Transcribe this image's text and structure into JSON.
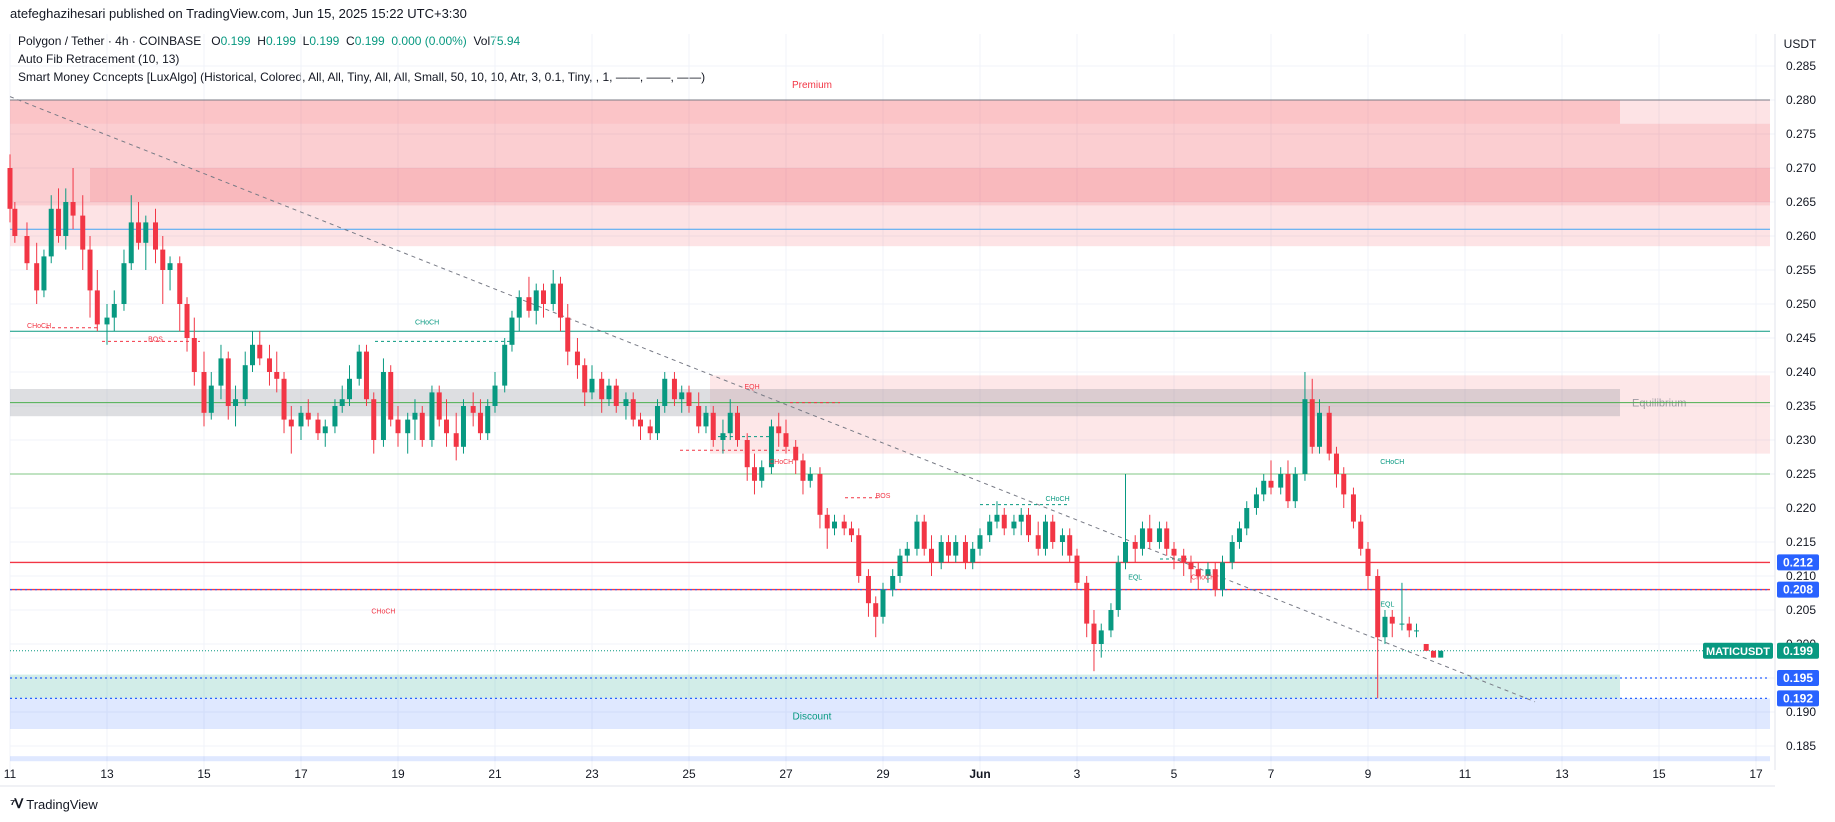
{
  "header": {
    "publisher_line": "atefeghazihesari published on TradingView.com, Jun 15, 2025 15:22 UTC+3:30"
  },
  "legend": {
    "symbol_line": "Polygon / Tether · 4h · COINBASE",
    "open_key": "O",
    "open": "0.199",
    "high_key": "H",
    "high": "0.199",
    "low_key": "L",
    "low": "0.199",
    "close_key": "C",
    "close": "0.199",
    "change": "0.000 (0.00%)",
    "vol_key": "Vol",
    "vol": "75.94",
    "indicator1": "Auto Fib Retracement (10, 13)",
    "indicator2": "Smart Money Concepts [LuxAlgo] (Historical, Colored, All, All, Tiny, All, All, Small, 50, 10, 10, Atr, 3, 0.1, Tiny, , 1, ——, ——, ——)"
  },
  "footer": {
    "brand": "TradingView"
  },
  "colors": {
    "up": "#089981",
    "down": "#f23645",
    "premium": "#f23645",
    "discount": "#089981",
    "blue": "#2962ff"
  },
  "chart_data": {
    "type": "candlestick",
    "y_axis_unit": "USDT",
    "ylim": [
      0.1815,
      0.2885
    ],
    "y_ticks": [
      "0.285",
      "0.280",
      "0.275",
      "0.270",
      "0.265",
      "0.260",
      "0.255",
      "0.250",
      "0.245",
      "0.240",
      "0.235",
      "0.230",
      "0.225",
      "0.220",
      "0.215",
      "0.210",
      "0.205",
      "0.200",
      "0.195",
      "0.190",
      "0.185"
    ],
    "x_tick_labels": [
      "11",
      "13",
      "15",
      "17",
      "19",
      "21",
      "23",
      "25",
      "27",
      "29",
      "Jun",
      "3",
      "5",
      "7",
      "9",
      "11",
      "13",
      "15",
      "17"
    ],
    "price_labels": [
      {
        "value": 0.212,
        "text": "0.212",
        "color": "#2962ff"
      },
      {
        "value": 0.208,
        "text": "0.208",
        "color": "#2962ff"
      },
      {
        "value": 0.195,
        "text": "0.195",
        "color": "#2962ff"
      },
      {
        "value": 0.192,
        "text": "0.192",
        "color": "#2962ff"
      }
    ],
    "last_price": {
      "symbol": "MATICUSDT",
      "value": 0.199,
      "text": "0.199"
    },
    "zones": [
      {
        "name": "Premium",
        "label": "Premium",
        "top": 0.28,
        "bottom": 0.2585,
        "color": "#f23645"
      },
      {
        "name": "Equilibrium",
        "label": "Equilibrium",
        "top": 0.2375,
        "bottom": 0.2335,
        "color": "#787b86"
      },
      {
        "name": "Discount",
        "label": "Discount",
        "top": 0.1955,
        "bottom": 0.1875,
        "color": "#089981"
      }
    ],
    "structure_labels": [
      {
        "text": "CHoCH",
        "x_day": 11.6,
        "y": 0.2465,
        "color": "#f23645"
      },
      {
        "text": "BOS",
        "x_day": 14.0,
        "y": 0.2445,
        "color": "#f23645"
      },
      {
        "text": "CHoCH",
        "x_day": 19.6,
        "y": 0.247,
        "color": "#089981"
      },
      {
        "text": "EQH",
        "x_day": 26.3,
        "y": 0.2375,
        "color": "#f23645"
      },
      {
        "text": "CHoCH",
        "x_day": 26.9,
        "y": 0.2265,
        "color": "#f23645"
      },
      {
        "text": "BOS",
        "x_day": 29.0,
        "y": 0.2215,
        "color": "#f23645"
      },
      {
        "text": "CHoCH",
        "x_day": 32.6,
        "y": 0.221,
        "color": "#089981"
      },
      {
        "text": "EQL",
        "x_day": 34.2,
        "y": 0.2095,
        "color": "#089981"
      },
      {
        "text": "CHoCH",
        "x_day": 35.6,
        "y": 0.2095,
        "color": "#f23645"
      },
      {
        "text": "CHoCH",
        "x_day": 39.5,
        "y": 0.2265,
        "color": "#089981"
      },
      {
        "text": "EQL",
        "x_day": 39.4,
        "y": 0.2055,
        "color": "#089981"
      },
      {
        "text": "CHoCH",
        "x_day": 18.7,
        "y": 0.2045,
        "color": "#f23645"
      }
    ],
    "candles": [
      [
        11.0,
        0.27,
        0.272,
        0.262,
        0.264
      ],
      [
        11.1,
        0.264,
        0.265,
        0.259,
        0.26
      ],
      [
        11.35,
        0.26,
        0.262,
        0.255,
        0.256
      ],
      [
        11.55,
        0.256,
        0.259,
        0.25,
        0.252
      ],
      [
        11.7,
        0.252,
        0.258,
        0.251,
        0.257
      ],
      [
        11.85,
        0.257,
        0.266,
        0.256,
        0.264
      ],
      [
        12.0,
        0.264,
        0.267,
        0.259,
        0.26
      ],
      [
        12.15,
        0.26,
        0.267,
        0.258,
        0.265
      ],
      [
        12.3,
        0.265,
        0.27,
        0.261,
        0.263
      ],
      [
        12.5,
        0.263,
        0.266,
        0.255,
        0.258
      ],
      [
        12.65,
        0.258,
        0.26,
        0.248,
        0.252
      ],
      [
        12.8,
        0.252,
        0.255,
        0.246,
        0.247
      ],
      [
        13.0,
        0.247,
        0.25,
        0.244,
        0.248
      ],
      [
        13.15,
        0.248,
        0.252,
        0.246,
        0.25
      ],
      [
        13.35,
        0.25,
        0.258,
        0.249,
        0.256
      ],
      [
        13.5,
        0.256,
        0.266,
        0.255,
        0.262
      ],
      [
        13.65,
        0.262,
        0.265,
        0.258,
        0.259
      ],
      [
        13.8,
        0.259,
        0.263,
        0.255,
        0.262
      ],
      [
        14.0,
        0.262,
        0.264,
        0.256,
        0.258
      ],
      [
        14.15,
        0.258,
        0.26,
        0.25,
        0.255
      ],
      [
        14.3,
        0.255,
        0.257,
        0.252,
        0.256
      ],
      [
        14.5,
        0.256,
        0.257,
        0.246,
        0.25
      ],
      [
        14.65,
        0.25,
        0.251,
        0.243,
        0.245
      ],
      [
        14.8,
        0.245,
        0.248,
        0.238,
        0.24
      ],
      [
        15.0,
        0.24,
        0.243,
        0.232,
        0.234
      ],
      [
        15.15,
        0.234,
        0.24,
        0.233,
        0.238
      ],
      [
        15.35,
        0.238,
        0.244,
        0.236,
        0.242
      ],
      [
        15.5,
        0.242,
        0.243,
        0.233,
        0.235
      ],
      [
        15.65,
        0.235,
        0.238,
        0.232,
        0.236
      ],
      [
        15.85,
        0.236,
        0.243,
        0.235,
        0.241
      ],
      [
        16.0,
        0.241,
        0.246,
        0.24,
        0.244
      ],
      [
        16.15,
        0.244,
        0.246,
        0.241,
        0.242
      ],
      [
        16.35,
        0.242,
        0.244,
        0.238,
        0.24
      ],
      [
        16.5,
        0.24,
        0.243,
        0.237,
        0.239
      ],
      [
        16.65,
        0.239,
        0.24,
        0.231,
        0.233
      ],
      [
        16.8,
        0.233,
        0.235,
        0.228,
        0.232
      ],
      [
        17.0,
        0.232,
        0.235,
        0.23,
        0.234
      ],
      [
        17.15,
        0.234,
        0.236,
        0.232,
        0.233
      ],
      [
        17.35,
        0.233,
        0.234,
        0.23,
        0.231
      ],
      [
        17.5,
        0.231,
        0.233,
        0.229,
        0.232
      ],
      [
        17.7,
        0.232,
        0.236,
        0.231,
        0.235
      ],
      [
        17.85,
        0.235,
        0.238,
        0.234,
        0.236
      ],
      [
        18.0,
        0.236,
        0.241,
        0.235,
        0.239
      ],
      [
        18.2,
        0.239,
        0.244,
        0.238,
        0.243
      ],
      [
        18.35,
        0.243,
        0.244,
        0.235,
        0.236
      ],
      [
        18.5,
        0.236,
        0.237,
        0.228,
        0.23
      ],
      [
        18.7,
        0.23,
        0.242,
        0.229,
        0.24
      ],
      [
        18.85,
        0.24,
        0.241,
        0.232,
        0.233
      ],
      [
        19.0,
        0.233,
        0.235,
        0.229,
        0.231
      ],
      [
        19.2,
        0.231,
        0.234,
        0.228,
        0.233
      ],
      [
        19.35,
        0.233,
        0.236,
        0.23,
        0.234
      ],
      [
        19.5,
        0.234,
        0.235,
        0.229,
        0.23
      ],
      [
        19.7,
        0.23,
        0.238,
        0.229,
        0.237
      ],
      [
        19.85,
        0.237,
        0.238,
        0.232,
        0.233
      ],
      [
        20.0,
        0.233,
        0.236,
        0.229,
        0.231
      ],
      [
        20.2,
        0.231,
        0.234,
        0.227,
        0.229
      ],
      [
        20.35,
        0.229,
        0.236,
        0.228,
        0.235
      ],
      [
        20.55,
        0.235,
        0.237,
        0.232,
        0.234
      ],
      [
        20.7,
        0.234,
        0.236,
        0.23,
        0.231
      ],
      [
        20.85,
        0.231,
        0.236,
        0.23,
        0.235
      ],
      [
        21.0,
        0.235,
        0.24,
        0.234,
        0.238
      ],
      [
        21.2,
        0.238,
        0.245,
        0.237,
        0.244
      ],
      [
        21.35,
        0.244,
        0.249,
        0.243,
        0.248
      ],
      [
        21.5,
        0.248,
        0.252,
        0.246,
        0.251
      ],
      [
        21.7,
        0.251,
        0.254,
        0.248,
        0.249
      ],
      [
        21.85,
        0.249,
        0.253,
        0.247,
        0.252
      ],
      [
        22.0,
        0.252,
        0.253,
        0.248,
        0.25
      ],
      [
        22.2,
        0.25,
        0.255,
        0.249,
        0.253
      ],
      [
        22.35,
        0.253,
        0.254,
        0.246,
        0.248
      ],
      [
        22.5,
        0.248,
        0.25,
        0.241,
        0.243
      ],
      [
        22.7,
        0.243,
        0.245,
        0.239,
        0.241
      ],
      [
        22.85,
        0.241,
        0.242,
        0.235,
        0.237
      ],
      [
        23.0,
        0.237,
        0.241,
        0.236,
        0.239
      ],
      [
        23.2,
        0.239,
        0.24,
        0.234,
        0.236
      ],
      [
        23.35,
        0.236,
        0.239,
        0.235,
        0.238
      ],
      [
        23.5,
        0.238,
        0.239,
        0.234,
        0.235
      ],
      [
        23.7,
        0.235,
        0.237,
        0.233,
        0.236
      ],
      [
        23.85,
        0.236,
        0.237,
        0.232,
        0.233
      ],
      [
        24.0,
        0.233,
        0.234,
        0.23,
        0.232
      ],
      [
        24.2,
        0.232,
        0.233,
        0.23,
        0.231
      ],
      [
        24.35,
        0.231,
        0.236,
        0.23,
        0.235
      ],
      [
        24.5,
        0.235,
        0.24,
        0.234,
        0.239
      ],
      [
        24.7,
        0.239,
        0.24,
        0.235,
        0.236
      ],
      [
        24.85,
        0.236,
        0.238,
        0.234,
        0.237
      ],
      [
        25.0,
        0.237,
        0.238,
        0.234,
        0.235
      ],
      [
        25.2,
        0.235,
        0.237,
        0.231,
        0.232
      ],
      [
        25.35,
        0.232,
        0.235,
        0.231,
        0.234
      ],
      [
        25.5,
        0.234,
        0.235,
        0.229,
        0.23
      ],
      [
        25.7,
        0.23,
        0.233,
        0.228,
        0.231
      ],
      [
        25.85,
        0.231,
        0.236,
        0.23,
        0.234
      ],
      [
        26.0,
        0.234,
        0.235,
        0.229,
        0.23
      ],
      [
        26.2,
        0.23,
        0.231,
        0.224,
        0.226
      ],
      [
        26.35,
        0.226,
        0.228,
        0.222,
        0.224
      ],
      [
        26.5,
        0.224,
        0.227,
        0.223,
        0.226
      ],
      [
        26.7,
        0.226,
        0.233,
        0.225,
        0.232
      ],
      [
        26.85,
        0.232,
        0.234,
        0.229,
        0.231
      ],
      [
        27.0,
        0.231,
        0.233,
        0.228,
        0.229
      ],
      [
        27.2,
        0.229,
        0.23,
        0.225,
        0.227
      ],
      [
        27.35,
        0.227,
        0.228,
        0.222,
        0.224
      ],
      [
        27.5,
        0.224,
        0.226,
        0.223,
        0.225
      ],
      [
        27.7,
        0.225,
        0.226,
        0.217,
        0.219
      ],
      [
        27.85,
        0.219,
        0.22,
        0.214,
        0.217
      ],
      [
        28.0,
        0.217,
        0.219,
        0.216,
        0.218
      ],
      [
        28.2,
        0.218,
        0.219,
        0.216,
        0.217
      ],
      [
        28.35,
        0.217,
        0.218,
        0.215,
        0.216
      ],
      [
        28.5,
        0.216,
        0.217,
        0.209,
        0.21
      ],
      [
        28.7,
        0.21,
        0.211,
        0.204,
        0.206
      ],
      [
        28.85,
        0.206,
        0.207,
        0.201,
        0.204
      ],
      [
        29.0,
        0.204,
        0.209,
        0.203,
        0.208
      ],
      [
        29.2,
        0.208,
        0.211,
        0.207,
        0.21
      ],
      [
        29.35,
        0.21,
        0.214,
        0.209,
        0.213
      ],
      [
        29.5,
        0.213,
        0.215,
        0.212,
        0.214
      ],
      [
        29.7,
        0.214,
        0.219,
        0.213,
        0.218
      ],
      [
        29.85,
        0.218,
        0.219,
        0.213,
        0.214
      ],
      [
        30.0,
        0.214,
        0.216,
        0.21,
        0.212
      ],
      [
        30.2,
        0.212,
        0.216,
        0.211,
        0.215
      ],
      [
        30.35,
        0.215,
        0.216,
        0.212,
        0.213
      ],
      [
        30.5,
        0.213,
        0.216,
        0.212,
        0.215
      ],
      [
        30.7,
        0.215,
        0.216,
        0.211,
        0.212
      ],
      [
        30.85,
        0.212,
        0.215,
        0.211,
        0.214
      ],
      [
        31.0,
        0.214,
        0.217,
        0.213,
        0.216
      ],
      [
        31.2,
        0.216,
        0.219,
        0.215,
        0.218
      ],
      [
        31.35,
        0.218,
        0.221,
        0.217,
        0.219
      ],
      [
        31.5,
        0.219,
        0.22,
        0.216,
        0.217
      ],
      [
        31.7,
        0.217,
        0.219,
        0.216,
        0.218
      ],
      [
        31.85,
        0.218,
        0.22,
        0.216,
        0.219
      ],
      [
        32.0,
        0.219,
        0.22,
        0.215,
        0.216
      ],
      [
        32.2,
        0.216,
        0.218,
        0.213,
        0.214
      ],
      [
        32.35,
        0.214,
        0.219,
        0.213,
        0.218
      ],
      [
        32.5,
        0.218,
        0.219,
        0.214,
        0.215
      ],
      [
        32.7,
        0.215,
        0.217,
        0.213,
        0.216
      ],
      [
        32.85,
        0.216,
        0.217,
        0.212,
        0.213
      ],
      [
        33.0,
        0.213,
        0.214,
        0.208,
        0.209
      ],
      [
        33.2,
        0.209,
        0.21,
        0.201,
        0.203
      ],
      [
        33.35,
        0.203,
        0.205,
        0.196,
        0.2
      ],
      [
        33.5,
        0.2,
        0.203,
        0.198,
        0.202
      ],
      [
        33.7,
        0.202,
        0.206,
        0.201,
        0.205
      ],
      [
        33.85,
        0.205,
        0.213,
        0.204,
        0.212
      ],
      [
        34.0,
        0.212,
        0.225,
        0.211,
        0.215
      ],
      [
        34.2,
        0.215,
        0.216,
        0.212,
        0.214
      ],
      [
        34.35,
        0.214,
        0.218,
        0.213,
        0.217
      ],
      [
        34.5,
        0.217,
        0.219,
        0.214,
        0.215
      ],
      [
        34.7,
        0.215,
        0.218,
        0.214,
        0.217
      ],
      [
        34.85,
        0.217,
        0.218,
        0.213,
        0.214
      ],
      [
        35.0,
        0.214,
        0.215,
        0.211,
        0.213
      ],
      [
        35.2,
        0.213,
        0.214,
        0.21,
        0.212
      ],
      [
        35.35,
        0.212,
        0.213,
        0.209,
        0.211
      ],
      [
        35.5,
        0.211,
        0.212,
        0.208,
        0.21
      ],
      [
        35.7,
        0.21,
        0.212,
        0.209,
        0.211
      ],
      [
        35.85,
        0.211,
        0.212,
        0.207,
        0.208
      ],
      [
        36.0,
        0.208,
        0.213,
        0.207,
        0.212
      ],
      [
        36.2,
        0.212,
        0.216,
        0.211,
        0.215
      ],
      [
        36.35,
        0.215,
        0.218,
        0.214,
        0.217
      ],
      [
        36.5,
        0.217,
        0.221,
        0.216,
        0.22
      ],
      [
        36.7,
        0.22,
        0.223,
        0.219,
        0.222
      ],
      [
        36.85,
        0.222,
        0.225,
        0.221,
        0.224
      ],
      [
        37.0,
        0.224,
        0.227,
        0.222,
        0.223
      ],
      [
        37.2,
        0.223,
        0.226,
        0.222,
        0.225
      ],
      [
        37.35,
        0.225,
        0.227,
        0.22,
        0.221
      ],
      [
        37.5,
        0.221,
        0.226,
        0.22,
        0.225
      ],
      [
        37.7,
        0.225,
        0.24,
        0.224,
        0.236
      ],
      [
        37.85,
        0.236,
        0.239,
        0.228,
        0.229
      ],
      [
        38.0,
        0.229,
        0.236,
        0.228,
        0.234
      ],
      [
        38.2,
        0.234,
        0.235,
        0.227,
        0.228
      ],
      [
        38.35,
        0.228,
        0.229,
        0.223,
        0.225
      ],
      [
        38.5,
        0.225,
        0.226,
        0.22,
        0.222
      ],
      [
        38.7,
        0.222,
        0.223,
        0.217,
        0.218
      ],
      [
        38.85,
        0.218,
        0.219,
        0.213,
        0.214
      ],
      [
        39.0,
        0.214,
        0.215,
        0.208,
        0.21
      ],
      [
        39.2,
        0.21,
        0.211,
        0.192,
        0.201
      ],
      [
        39.35,
        0.201,
        0.205,
        0.2,
        0.204
      ],
      [
        39.5,
        0.204,
        0.205,
        0.201,
        0.203
      ],
      [
        39.7,
        0.203,
        0.209,
        0.202,
        0.203
      ],
      [
        39.85,
        0.203,
        0.204,
        0.201,
        0.202
      ],
      [
        40.0,
        0.202,
        0.203,
        0.201,
        0.202
      ],
      [
        40.2,
        0.2,
        0.2,
        0.199,
        0.199
      ],
      [
        40.35,
        0.199,
        0.199,
        0.198,
        0.198
      ],
      [
        40.5,
        0.198,
        0.199,
        0.198,
        0.199
      ]
    ]
  }
}
